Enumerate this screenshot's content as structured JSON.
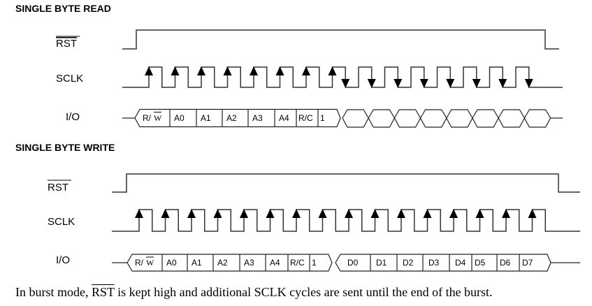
{
  "read": {
    "title": "SINGLE BYTE READ",
    "signals": {
      "rst": "RST",
      "sclk": "SCLK",
      "io": "I/O"
    },
    "cells": [
      "R/",
      "W",
      "A0",
      "A1",
      "A2",
      "A3",
      "A4",
      "R/C",
      "1"
    ],
    "sclk_cycles": 15,
    "rising_arrow_cycles": [
      0,
      1,
      2,
      3,
      4,
      5,
      6,
      7
    ],
    "falling_arrow_cycles": [
      7,
      8,
      9,
      10,
      11,
      12,
      13,
      14
    ],
    "data_slots": 8
  },
  "write": {
    "title": "SINGLE BYTE WRITE",
    "signals": {
      "rst": "RST",
      "sclk": "SCLK",
      "io": "I/O"
    },
    "cells": [
      "R/",
      "W",
      "A0",
      "A1",
      "A2",
      "A3",
      "A4",
      "R/C",
      "1"
    ],
    "data_cells": [
      "D0",
      "D1",
      "D2",
      "D3",
      "D4",
      "D5",
      "D6",
      "D7"
    ],
    "sclk_cycles": 16,
    "rising_arrow_cycles": [
      0,
      1,
      2,
      3,
      4,
      5,
      6,
      7,
      8,
      9,
      10,
      11,
      12,
      13,
      14,
      15
    ],
    "falling_arrow_cycles": []
  },
  "footer": {
    "part1": "In burst mode, ",
    "rst": "RST",
    "part2": " is kept high and additional SCLK cycles are sent until the end of the burst."
  }
}
